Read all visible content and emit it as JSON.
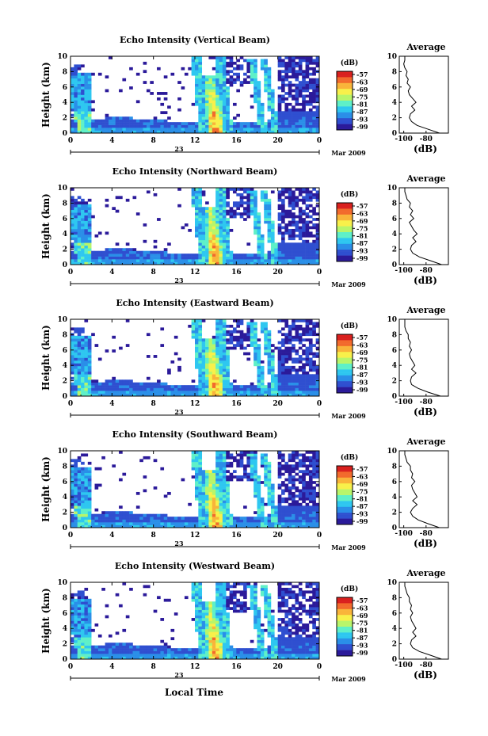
{
  "figure": {
    "time_unit_label": "Local Time",
    "date_label": "Mar 2009",
    "day_label": "23",
    "colorbar_label": "(dB)",
    "avg_title": "Average",
    "avg_xlabel": "(dB)"
  },
  "colors": {
    "colormap": [
      "#2b1a9a",
      "#2f4fd0",
      "#2a8fe8",
      "#2ec7f0",
      "#5ff0c8",
      "#b8f56a",
      "#f8f04a",
      "#f9b43a",
      "#f26a2c",
      "#d9201e"
    ]
  },
  "chart_data": [
    {
      "type": "heatmap",
      "title": "Echo Intensity (Vertical Beam)",
      "ylabel": "Height (km)",
      "xlabel": "Local Time",
      "x_ticks": [
        "0",
        "4",
        "8",
        "12",
        "16",
        "20",
        "0"
      ],
      "x_range": [
        0,
        24
      ],
      "y_ticks": [
        "0",
        "2",
        "4",
        "6",
        "8",
        "10"
      ],
      "ylim": [
        0,
        10
      ],
      "colorbar": {
        "label": "(dB)",
        "ticks": [
          "-57",
          "-63",
          "-69",
          "-75",
          "-81",
          "-87",
          "-93",
          "-99"
        ]
      },
      "average_profile": {
        "title": "Average",
        "xlabel": "(dB)",
        "x_ticks": [
          "-100",
          "-80"
        ],
        "height_km": [
          0,
          0.5,
          1,
          1.5,
          2,
          2.5,
          3,
          3.5,
          4,
          4.5,
          5,
          5.5,
          6,
          6.5,
          7,
          7.5,
          8,
          8.5,
          9,
          9.5,
          10
        ],
        "db": [
          -68,
          -78,
          -88,
          -93,
          -95,
          -94,
          -90,
          -93,
          -89,
          -92,
          -95,
          -96,
          -94,
          -97,
          -96,
          -98,
          -97,
          -99,
          -100,
          -99,
          -99
        ]
      }
    },
    {
      "type": "heatmap",
      "title": "Echo Intensity (Northward Beam)",
      "ylabel": "Height (km)",
      "xlabel": "Local Time",
      "x_ticks": [
        "0",
        "4",
        "8",
        "12",
        "16",
        "20",
        "0"
      ],
      "x_range": [
        0,
        24
      ],
      "y_ticks": [
        "0",
        "2",
        "4",
        "6",
        "8",
        "10"
      ],
      "ylim": [
        0,
        10
      ],
      "colorbar": {
        "label": "(dB)",
        "ticks": [
          "-57",
          "-63",
          "-69",
          "-75",
          "-81",
          "-87",
          "-93",
          "-99"
        ]
      },
      "average_profile": {
        "title": "Average",
        "xlabel": "(dB)",
        "x_ticks": [
          "-100",
          "-80"
        ],
        "height_km": [
          0,
          0.5,
          1,
          1.5,
          2,
          2.5,
          3,
          3.5,
          4,
          4.5,
          5,
          5.5,
          6,
          6.5,
          7,
          7.5,
          8,
          8.5,
          9,
          9.5,
          10
        ],
        "db": [
          -66,
          -76,
          -86,
          -92,
          -94,
          -93,
          -89,
          -92,
          -88,
          -91,
          -93,
          -95,
          -91,
          -94,
          -92,
          -95,
          -94,
          -97,
          -98,
          -99,
          -99
        ]
      }
    },
    {
      "type": "heatmap",
      "title": "Echo Intensity (Eastward Beam)",
      "ylabel": "Height (km)",
      "xlabel": "Local Time",
      "x_ticks": [
        "0",
        "4",
        "8",
        "12",
        "16",
        "20",
        "0"
      ],
      "x_range": [
        0,
        24
      ],
      "y_ticks": [
        "0",
        "2",
        "4",
        "6",
        "8",
        "10"
      ],
      "ylim": [
        0,
        10
      ],
      "colorbar": {
        "label": "(dB)",
        "ticks": [
          "-57",
          "-63",
          "-69",
          "-75",
          "-81",
          "-87",
          "-93",
          "-99"
        ]
      },
      "average_profile": {
        "title": "Average",
        "xlabel": "(dB)",
        "x_ticks": [
          "-100",
          "-80"
        ],
        "height_km": [
          0,
          0.5,
          1,
          1.5,
          2,
          2.5,
          3,
          3.5,
          4,
          4.5,
          5,
          5.5,
          6,
          6.5,
          7,
          7.5,
          8,
          8.5,
          9,
          9.5,
          10
        ],
        "db": [
          -67,
          -78,
          -87,
          -93,
          -94,
          -93,
          -89,
          -93,
          -90,
          -92,
          -94,
          -95,
          -93,
          -95,
          -94,
          -96,
          -96,
          -98,
          -99,
          -99,
          -99
        ]
      }
    },
    {
      "type": "heatmap",
      "title": "Echo Intensity (Southward Beam)",
      "ylabel": "Height (km)",
      "xlabel": "Local Time",
      "x_ticks": [
        "0",
        "4",
        "8",
        "12",
        "16",
        "20",
        "0"
      ],
      "x_range": [
        0,
        24
      ],
      "y_ticks": [
        "0",
        "2",
        "4",
        "6",
        "8",
        "10"
      ],
      "ylim": [
        0,
        10
      ],
      "colorbar": {
        "label": "(dB)",
        "ticks": [
          "-57",
          "-63",
          "-69",
          "-75",
          "-81",
          "-87",
          "-93",
          "-99"
        ]
      },
      "average_profile": {
        "title": "Average",
        "xlabel": "(dB)",
        "x_ticks": [
          "-100",
          "-80"
        ],
        "height_km": [
          0,
          0.5,
          1,
          1.5,
          2,
          2.5,
          3,
          3.5,
          4,
          4.5,
          5,
          5.5,
          6,
          6.5,
          7,
          7.5,
          8,
          8.5,
          9,
          9.5,
          10
        ],
        "db": [
          -68,
          -78,
          -87,
          -92,
          -94,
          -92,
          -88,
          -92,
          -88,
          -90,
          -92,
          -93,
          -90,
          -93,
          -92,
          -94,
          -94,
          -97,
          -98,
          -99,
          -99
        ]
      }
    },
    {
      "type": "heatmap",
      "title": "Echo Intensity (Westward Beam)",
      "ylabel": "Height (km)",
      "xlabel": "Local Time",
      "x_ticks": [
        "0",
        "4",
        "8",
        "12",
        "16",
        "20",
        "0"
      ],
      "x_range": [
        0,
        24
      ],
      "y_ticks": [
        "0",
        "2",
        "4",
        "6",
        "8",
        "10"
      ],
      "ylim": [
        0,
        10
      ],
      "colorbar": {
        "label": "(dB)",
        "ticks": [
          "-57",
          "-63",
          "-69",
          "-75",
          "-81",
          "-87",
          "-93",
          "-99"
        ]
      },
      "average_profile": {
        "title": "Average",
        "xlabel": "(dB)",
        "x_ticks": [
          "-100",
          "-80"
        ],
        "height_km": [
          0,
          0.5,
          1,
          1.5,
          2,
          2.5,
          3,
          3.5,
          4,
          4.5,
          5,
          5.5,
          6,
          6.5,
          7,
          7.5,
          8,
          8.5,
          9,
          9.5,
          10
        ],
        "db": [
          -66,
          -76,
          -86,
          -92,
          -94,
          -93,
          -89,
          -92,
          -89,
          -91,
          -93,
          -94,
          -92,
          -94,
          -93,
          -95,
          -95,
          -97,
          -98,
          -99,
          -99
        ]
      }
    }
  ]
}
